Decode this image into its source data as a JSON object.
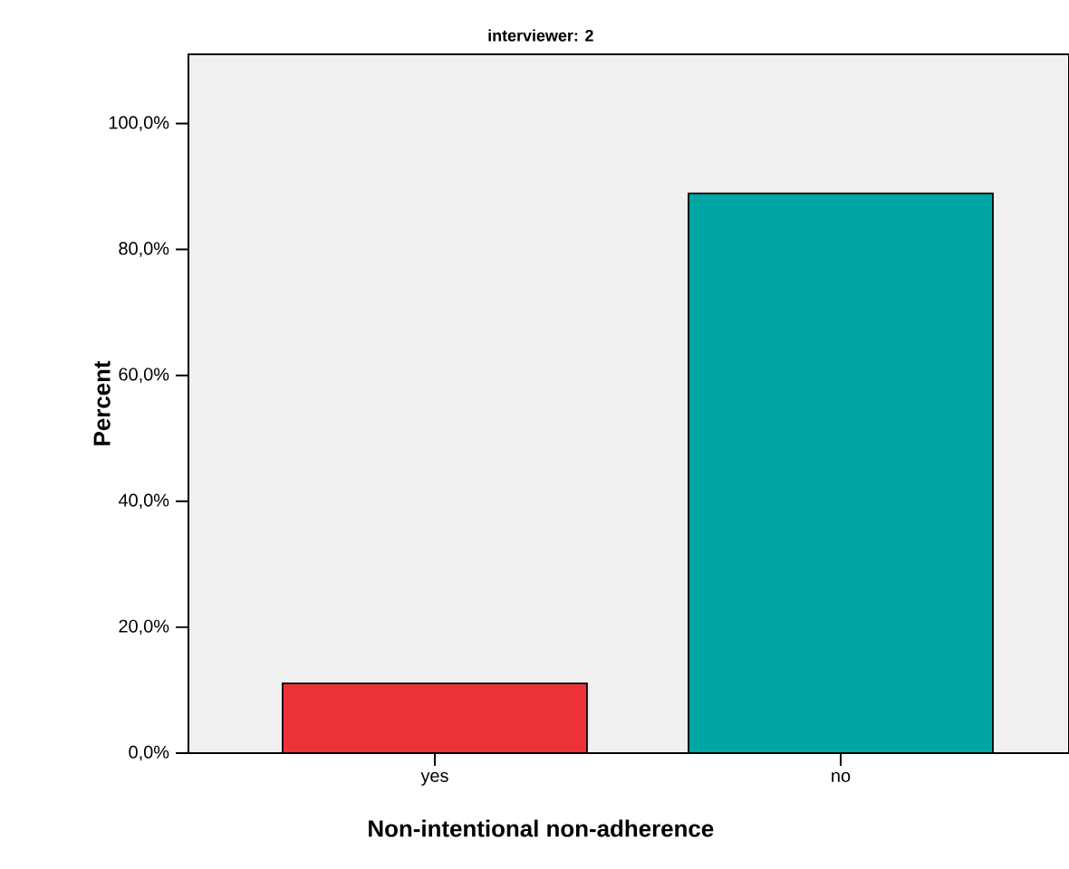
{
  "chart_data": {
    "type": "bar",
    "title": "interviewer: 2",
    "xlabel": "Non-intentional non-adherence",
    "ylabel": "Percent",
    "categories": [
      "yes",
      "no"
    ],
    "values": [
      11.1,
      88.9
    ],
    "colors": [
      "#ee3338",
      "#00a5a5"
    ],
    "ylim": [
      0,
      111
    ],
    "yticks": [
      {
        "value": 0,
        "label": "0,0%"
      },
      {
        "value": 20,
        "label": "20,0%"
      },
      {
        "value": 40,
        "label": "40,0%"
      },
      {
        "value": 60,
        "label": "60,0%"
      },
      {
        "value": 80,
        "label": "80,0%"
      },
      {
        "value": 100,
        "label": "100,0%"
      }
    ],
    "grid": false
  }
}
